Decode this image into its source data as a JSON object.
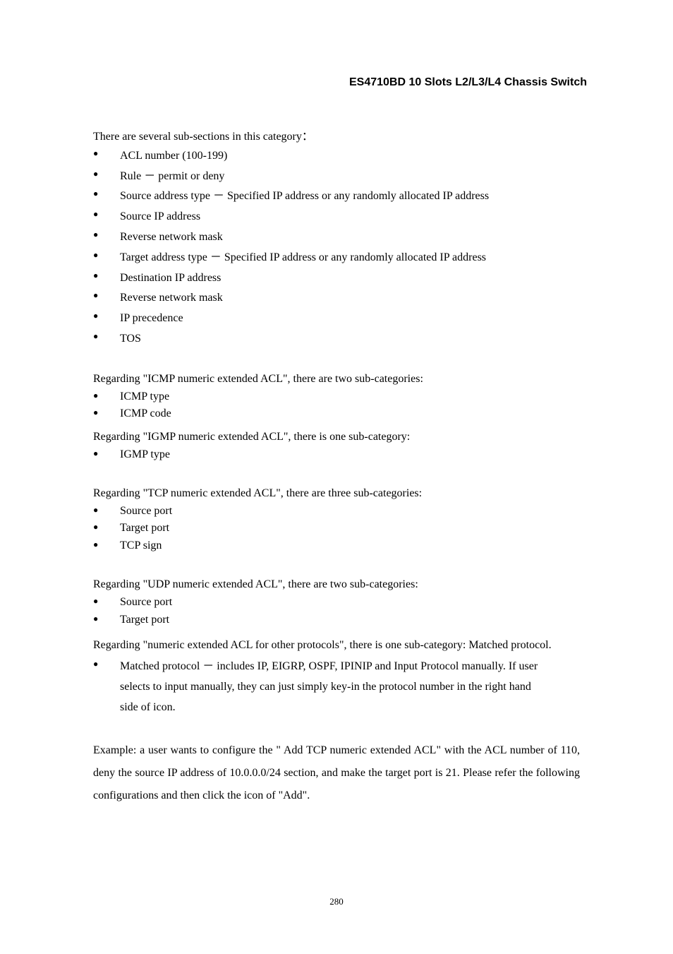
{
  "header": {
    "title": "ES4710BD 10 Slots L2/L3/L4 Chassis Switch"
  },
  "intro": {
    "text": "There are several sub-sections in this category："
  },
  "main_bullets": [
    "ACL number (100-199)",
    "Rule － permit or deny",
    "Source address type － Specified IP address or any randomly allocated IP address",
    "Source IP address",
    "Reverse network mask",
    "Target address type － Specified IP address or any randomly allocated IP address",
    "Destination IP address",
    "Reverse network mask",
    "IP precedence",
    "TOS"
  ],
  "icmp": {
    "heading": "Regarding \"ICMP numeric extended ACL\", there are two sub-categories:",
    "bullets": [
      "ICMP type",
      "ICMP code"
    ]
  },
  "igmp": {
    "heading": "Regarding \"IGMP numeric extended ACL\", there is one sub-category:",
    "bullets": [
      "IGMP type"
    ]
  },
  "tcp": {
    "heading": "Regarding \"TCP numeric extended ACL\", there are three sub-categories:",
    "bullets": [
      "Source port",
      "Target port",
      "TCP sign"
    ]
  },
  "udp": {
    "heading": "Regarding \"UDP numeric extended ACL\", there are two sub-categories:",
    "bullets": [
      "Source port",
      "Target port"
    ]
  },
  "other_proto": {
    "heading": "Regarding \"numeric extended ACL for other protocols\", there is one sub-category: Matched protocol.",
    "bullet_lead": "Matched protocol － includes IP, EIGRP, OSPF, IPINIP and Input Protocol manually. If user",
    "cont1": "selects to input manually, they can just simply key-in the protocol number in the right hand",
    "cont2": "side of icon."
  },
  "example": {
    "text": "Example: a user wants to configure the \" Add TCP numeric extended ACL\" with the ACL number of 110, deny the source IP address of 10.0.0.0/24 section, and make the target port is 21. Please refer the following configurations and then click the icon of \"Add\"."
  },
  "page_number": "280"
}
